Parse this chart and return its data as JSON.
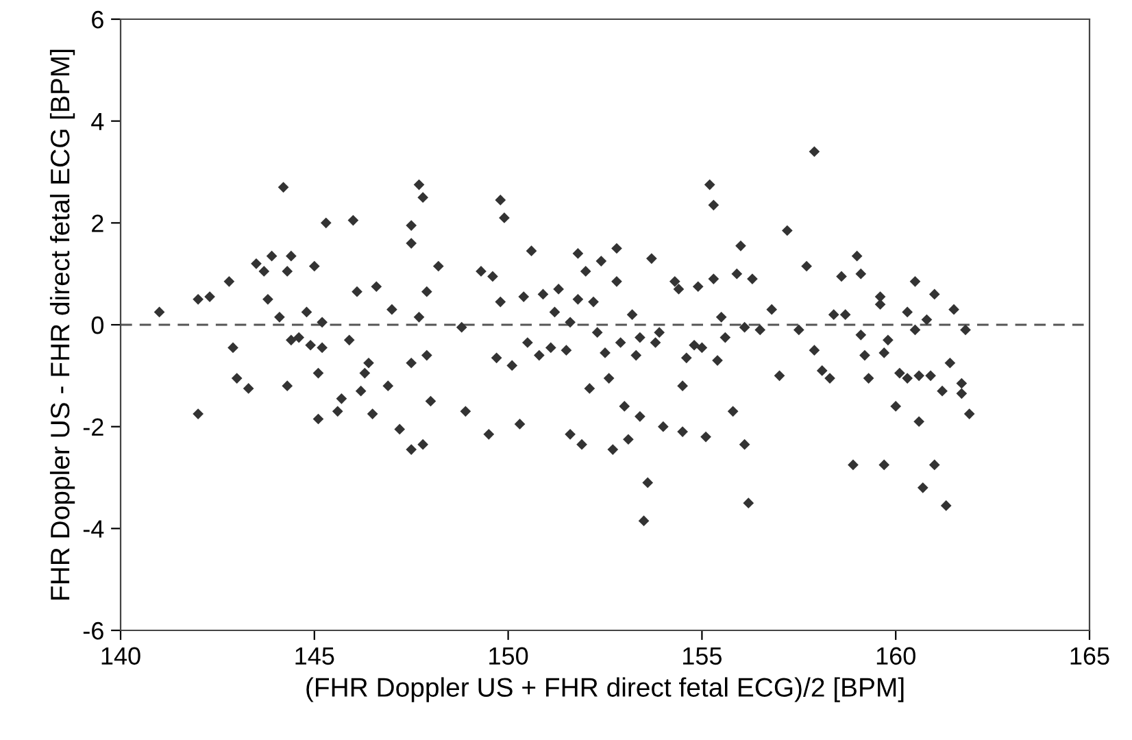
{
  "chart_data": {
    "type": "scatter",
    "xlabel": "(FHR Doppler US + FHR direct fetal ECG)/2 [BPM]",
    "ylabel": "FHR Doppler US - FHR direct fetal ECG [BPM]",
    "xlim": [
      140,
      165
    ],
    "xticks": [
      140,
      145,
      150,
      155,
      160,
      165
    ],
    "ylim": [
      -6,
      6
    ],
    "yticks": [
      -6,
      -4,
      -2,
      0,
      2,
      4,
      6
    ],
    "grid": false,
    "legend": false,
    "marker": "diamond",
    "ref_lines": [
      {
        "axis": "y",
        "value": 0,
        "label": null,
        "color": "#555555",
        "line_style": "dashed"
      }
    ],
    "series": [
      {
        "color": "#333333",
        "x": [
          141.0,
          142.0,
          142.0,
          142.3,
          142.8,
          142.9,
          143.0,
          143.3,
          143.5,
          143.7,
          143.9,
          143.8,
          144.1,
          144.2,
          144.3,
          144.4,
          144.4,
          144.3,
          144.6,
          144.8,
          145.0,
          144.9,
          145.1,
          145.1,
          145.3,
          145.2,
          145.2,
          145.6,
          145.7,
          145.9,
          146.0,
          146.1,
          146.2,
          146.3,
          146.4,
          146.5,
          146.6,
          146.9,
          147.0,
          147.2,
          147.5,
          147.5,
          147.5,
          147.5,
          147.7,
          147.8,
          147.9,
          147.7,
          147.8,
          148.0,
          147.9,
          148.2,
          148.8,
          148.9,
          149.3,
          149.5,
          149.6,
          149.7,
          149.8,
          149.9,
          149.8,
          150.1,
          150.3,
          150.4,
          150.5,
          150.6,
          150.8,
          150.9,
          151.1,
          151.2,
          151.3,
          151.5,
          151.6,
          151.6,
          151.9,
          151.8,
          151.8,
          152.0,
          152.1,
          152.2,
          152.3,
          152.4,
          152.5,
          152.6,
          152.7,
          152.8,
          152.8,
          152.9,
          153.0,
          153.1,
          153.2,
          153.3,
          153.4,
          153.4,
          153.5,
          153.6,
          153.7,
          153.8,
          153.9,
          154.0,
          154.3,
          154.4,
          154.5,
          154.5,
          154.6,
          154.8,
          154.9,
          155.0,
          155.1,
          155.2,
          155.3,
          155.3,
          155.4,
          155.5,
          155.6,
          155.8,
          155.9,
          156.1,
          156.0,
          156.1,
          156.2,
          156.3,
          156.5,
          156.8,
          157.0,
          157.2,
          157.5,
          157.7,
          157.9,
          157.9,
          158.1,
          158.3,
          158.4,
          158.6,
          158.7,
          158.9,
          159.0,
          159.1,
          159.1,
          159.2,
          159.3,
          159.6,
          159.6,
          159.7,
          159.7,
          159.8,
          160.0,
          160.1,
          160.3,
          160.3,
          160.5,
          160.5,
          160.6,
          160.6,
          160.7,
          160.8,
          160.9,
          161.0,
          161.0,
          161.2,
          161.3,
          161.4,
          161.5,
          161.7,
          161.7,
          161.8,
          161.9
        ],
        "values": [
          0.25,
          -1.75,
          0.5,
          0.55,
          0.85,
          -0.45,
          -1.05,
          -1.25,
          1.2,
          1.05,
          1.35,
          0.5,
          0.15,
          2.7,
          1.05,
          1.35,
          -0.3,
          -1.2,
          -0.25,
          0.25,
          1.15,
          -0.4,
          -0.95,
          -1.85,
          2.0,
          -0.45,
          0.05,
          -1.7,
          -1.45,
          -0.3,
          2.05,
          0.65,
          -1.3,
          -0.95,
          -0.75,
          -1.75,
          0.75,
          -1.2,
          0.3,
          -2.05,
          1.95,
          1.6,
          -0.75,
          -2.45,
          2.75,
          2.5,
          0.65,
          0.15,
          -2.35,
          -1.5,
          -0.6,
          1.15,
          -0.05,
          -1.7,
          1.05,
          -2.15,
          0.95,
          -0.65,
          2.45,
          2.1,
          0.45,
          -0.8,
          -1.95,
          0.55,
          -0.35,
          1.45,
          -0.6,
          0.6,
          -0.45,
          0.25,
          0.7,
          -0.5,
          0.05,
          -2.15,
          -2.35,
          1.4,
          0.5,
          1.05,
          -1.25,
          0.45,
          -0.15,
          1.25,
          -0.55,
          -1.05,
          -2.45,
          1.5,
          0.85,
          -0.35,
          -1.6,
          -2.25,
          0.2,
          -0.6,
          -0.25,
          -1.8,
          -3.85,
          -3.1,
          1.3,
          -0.35,
          -0.15,
          -2.0,
          0.85,
          0.7,
          -2.1,
          -1.2,
          -0.65,
          -0.4,
          0.75,
          -0.45,
          -2.2,
          2.75,
          2.35,
          0.9,
          -0.7,
          0.15,
          -0.25,
          -1.7,
          1.0,
          -0.05,
          1.55,
          -2.35,
          -3.5,
          0.9,
          -0.1,
          0.3,
          -1.0,
          1.85,
          -0.1,
          1.15,
          3.4,
          -0.5,
          -0.9,
          -1.05,
          0.2,
          0.95,
          0.2,
          -2.75,
          1.35,
          1.0,
          -0.2,
          -0.6,
          -1.05,
          0.55,
          0.4,
          -0.55,
          -2.75,
          -0.3,
          -1.6,
          -0.95,
          0.25,
          -1.05,
          -0.1,
          0.85,
          -1.0,
          -1.9,
          -3.2,
          0.1,
          -1.0,
          -2.75,
          0.6,
          -1.3,
          -3.55,
          -0.75,
          0.3,
          -1.15,
          -1.35,
          -0.1,
          -1.75
        ]
      }
    ]
  }
}
